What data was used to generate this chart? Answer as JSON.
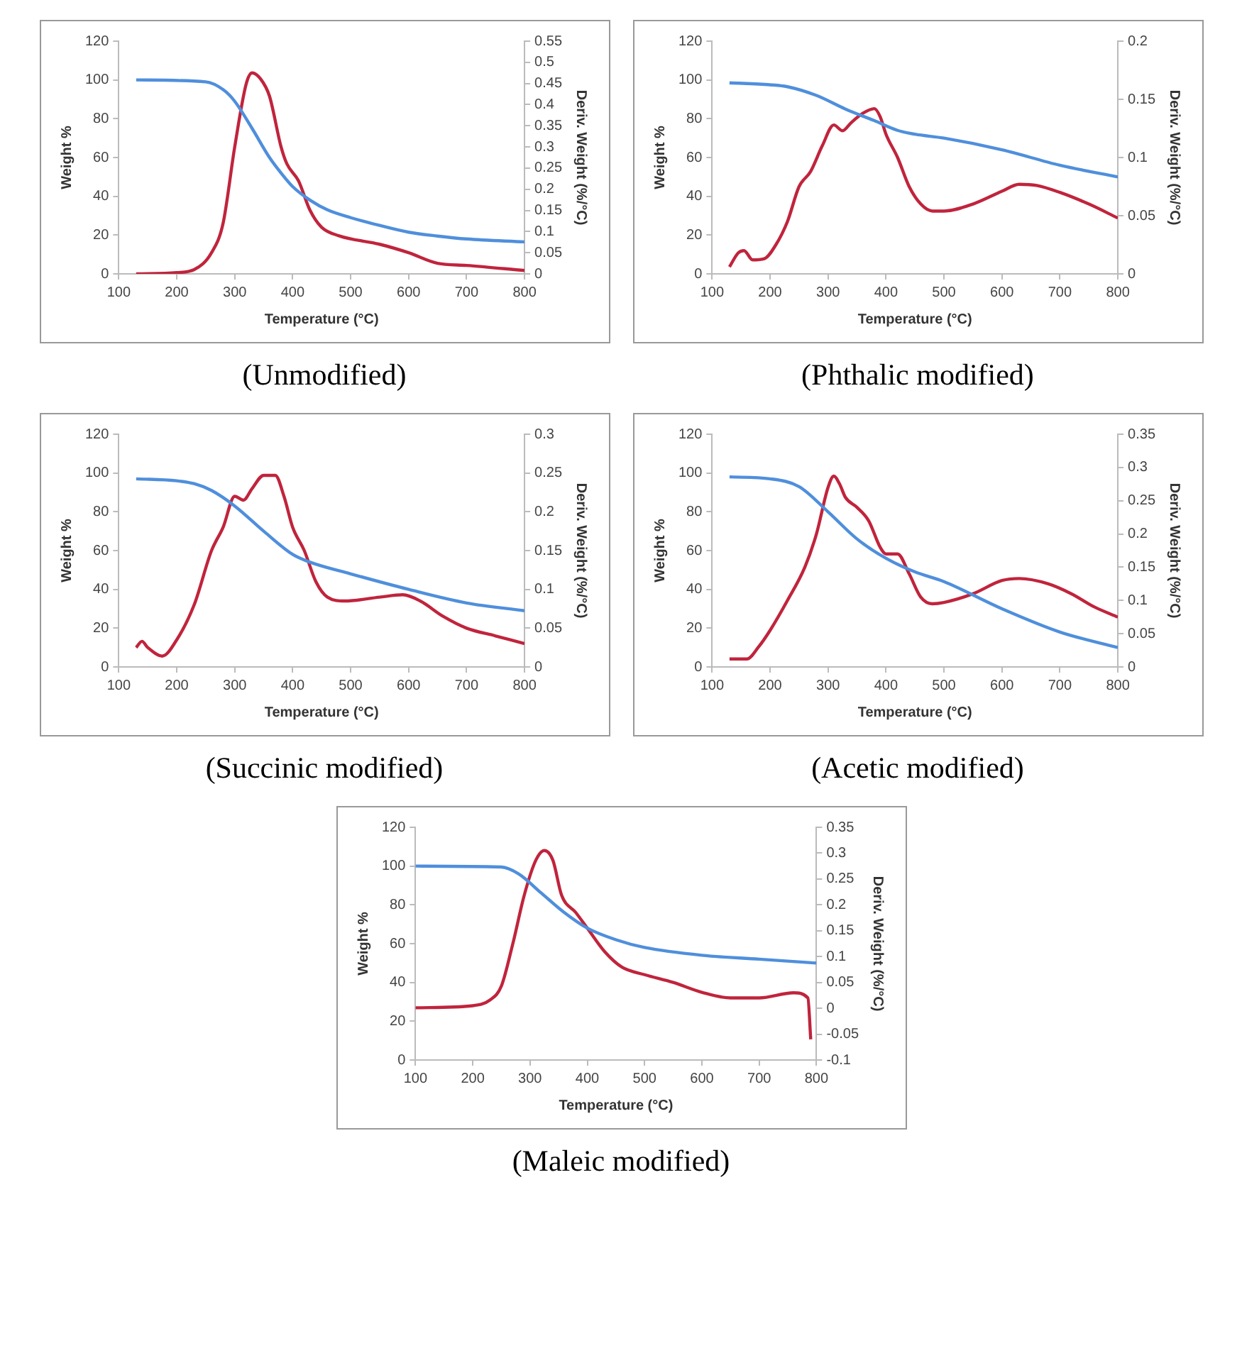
{
  "chart_data": [
    {
      "type": "line",
      "title": "(Unmodified)",
      "xlabel": "Temperature (°C)",
      "ylabel": "Weight %",
      "y2label": "Deriv. Weight (%/°C)",
      "xlim": [
        100,
        800
      ],
      "xticks": [
        100,
        200,
        300,
        400,
        500,
        600,
        700,
        800
      ],
      "ylim": [
        0,
        120
      ],
      "yticks": [
        0,
        20,
        40,
        60,
        80,
        100,
        120
      ],
      "y2lim": [
        0,
        0.55
      ],
      "y2ticks": [
        0,
        0.05,
        0.1,
        0.15,
        0.2,
        0.25,
        0.3,
        0.35,
        0.4,
        0.45,
        0.5,
        0.55
      ],
      "grid": false,
      "legend": false,
      "series": [
        {
          "color": "#4f8fdc",
          "x": [
            130,
            250,
            280,
            300,
            330,
            360,
            380,
            400,
            430,
            460,
            500,
            550,
            600,
            650,
            700,
            800
          ],
          "values": [
            100,
            99,
            95,
            89,
            75,
            60,
            52,
            45,
            38,
            33,
            29,
            25,
            21.5,
            19.5,
            18,
            16.5
          ]
        },
        {
          "color": "#c0243c",
          "axis": "y2",
          "x": [
            130,
            200,
            230,
            260,
            280,
            300,
            320,
            330,
            345,
            360,
            380,
            390,
            410,
            430,
            450,
            480,
            550,
            600,
            650,
            700,
            800
          ],
          "values": [
            0,
            0.003,
            0.01,
            0.05,
            0.12,
            0.3,
            0.45,
            0.475,
            0.46,
            0.42,
            0.3,
            0.26,
            0.22,
            0.15,
            0.11,
            0.09,
            0.07,
            0.05,
            0.025,
            0.02,
            0.008
          ]
        }
      ]
    },
    {
      "type": "line",
      "title": "(Phthalic modified)",
      "xlabel": "Temperature (°C)",
      "ylabel": "Weight %",
      "y2label": "Deriv. Weight (%/°C)",
      "xlim": [
        100,
        800
      ],
      "xticks": [
        100,
        200,
        300,
        400,
        500,
        600,
        700,
        800
      ],
      "ylim": [
        0,
        120
      ],
      "yticks": [
        0,
        20,
        40,
        60,
        80,
        100,
        120
      ],
      "y2lim": [
        0,
        0.2
      ],
      "y2ticks": [
        0,
        0.05,
        0.1,
        0.15,
        0.2
      ],
      "grid": false,
      "legend": false,
      "series": [
        {
          "color": "#4f8fdc",
          "x": [
            130,
            200,
            230,
            280,
            330,
            380,
            420,
            450,
            500,
            600,
            700,
            800
          ],
          "values": [
            98.5,
            97.5,
            96.5,
            92,
            85,
            79,
            74,
            72,
            70,
            64,
            56,
            50
          ]
        },
        {
          "color": "#c0243c",
          "axis": "y2",
          "x": [
            130,
            145,
            155,
            170,
            190,
            210,
            230,
            250,
            270,
            290,
            310,
            325,
            340,
            360,
            380,
            390,
            400,
            420,
            440,
            460,
            480,
            500,
            550,
            600,
            630,
            660,
            700,
            750,
            800
          ],
          "values": [
            0.006,
            0.018,
            0.02,
            0.012,
            0.013,
            0.025,
            0.045,
            0.075,
            0.088,
            0.11,
            0.128,
            0.123,
            0.13,
            0.138,
            0.142,
            0.135,
            0.12,
            0.1,
            0.075,
            0.06,
            0.054,
            0.054,
            0.06,
            0.071,
            0.077,
            0.076,
            0.07,
            0.06,
            0.048
          ]
        }
      ]
    },
    {
      "type": "line",
      "title": "(Succinic modified)",
      "xlabel": "Temperature (°C)",
      "ylabel": "Weight %",
      "y2label": "Deriv. Weight (%/°C)",
      "xlim": [
        100,
        800
      ],
      "xticks": [
        100,
        200,
        300,
        400,
        500,
        600,
        700,
        800
      ],
      "ylim": [
        0,
        120
      ],
      "yticks": [
        0,
        20,
        40,
        60,
        80,
        100,
        120
      ],
      "y2lim": [
        0,
        0.3
      ],
      "y2ticks": [
        0,
        0.05,
        0.1,
        0.15,
        0.2,
        0.25,
        0.3
      ],
      "grid": false,
      "legend": false,
      "series": [
        {
          "color": "#4f8fdc",
          "x": [
            130,
            200,
            230,
            260,
            300,
            350,
            400,
            430,
            500,
            600,
            700,
            800
          ],
          "values": [
            97,
            96,
            94.5,
            91,
            83,
            70,
            58,
            54,
            48,
            40,
            33,
            29
          ]
        },
        {
          "color": "#c0243c",
          "axis": "y2",
          "x": [
            130,
            140,
            150,
            175,
            200,
            230,
            260,
            280,
            300,
            315,
            330,
            350,
            370,
            385,
            400,
            420,
            440,
            460,
            490,
            550,
            590,
            620,
            660,
            700,
            750,
            800
          ],
          "values": [
            0.025,
            0.033,
            0.025,
            0.014,
            0.035,
            0.08,
            0.15,
            0.18,
            0.22,
            0.215,
            0.23,
            0.247,
            0.247,
            0.22,
            0.18,
            0.15,
            0.11,
            0.09,
            0.085,
            0.09,
            0.093,
            0.085,
            0.065,
            0.05,
            0.04,
            0.03
          ]
        }
      ]
    },
    {
      "type": "line",
      "title": "(Acetic modified)",
      "xlabel": "Temperature (°C)",
      "ylabel": "Weight %",
      "y2label": "Deriv. Weight (%/°C)",
      "xlim": [
        100,
        800
      ],
      "xticks": [
        100,
        200,
        300,
        400,
        500,
        600,
        700,
        800
      ],
      "ylim": [
        0,
        120
      ],
      "yticks": [
        0,
        20,
        40,
        60,
        80,
        100,
        120
      ],
      "y2lim": [
        0,
        0.35
      ],
      "y2ticks": [
        0,
        0.05,
        0.1,
        0.15,
        0.2,
        0.25,
        0.3,
        0.35
      ],
      "grid": false,
      "legend": false,
      "series": [
        {
          "color": "#4f8fdc",
          "x": [
            130,
            200,
            250,
            300,
            350,
            400,
            450,
            500,
            600,
            700,
            800
          ],
          "values": [
            98,
            97,
            93,
            80,
            66,
            56,
            49,
            44,
            30,
            18,
            10
          ]
        },
        {
          "color": "#c0243c",
          "axis": "y2",
          "x": [
            130,
            160,
            180,
            200,
            230,
            260,
            280,
            300,
            310,
            320,
            330,
            350,
            370,
            390,
            400,
            420,
            440,
            460,
            480,
            500,
            550,
            600,
            630,
            680,
            720,
            760,
            800
          ],
          "values": [
            0.012,
            0.012,
            0.03,
            0.055,
            0.1,
            0.15,
            0.2,
            0.27,
            0.287,
            0.275,
            0.255,
            0.24,
            0.22,
            0.18,
            0.17,
            0.17,
            0.14,
            0.105,
            0.095,
            0.097,
            0.11,
            0.13,
            0.133,
            0.125,
            0.11,
            0.09,
            0.075
          ]
        }
      ]
    },
    {
      "type": "line",
      "title": "(Maleic modified)",
      "xlabel": "Temperature (°C)",
      "ylabel": "Weight %",
      "y2label": "Deriv. Weight (%/°C)",
      "xlim": [
        100,
        800
      ],
      "xticks": [
        100,
        200,
        300,
        400,
        500,
        600,
        700,
        800
      ],
      "ylim": [
        0,
        120
      ],
      "yticks": [
        0,
        20,
        40,
        60,
        80,
        100,
        120
      ],
      "y2lim": [
        -0.1,
        0.35
      ],
      "y2ticks": [
        -0.1,
        -0.05,
        0,
        0.05,
        0.1,
        0.15,
        0.2,
        0.25,
        0.3,
        0.35
      ],
      "grid": false,
      "legend": false,
      "series": [
        {
          "color": "#4f8fdc",
          "x": [
            100,
            250,
            280,
            320,
            360,
            400,
            450,
            500,
            600,
            700,
            800
          ],
          "values": [
            100,
            99.5,
            96,
            86,
            76,
            68,
            62,
            58,
            54,
            52,
            50
          ]
        },
        {
          "color": "#c0243c",
          "axis": "y2",
          "x": [
            100,
            200,
            230,
            250,
            270,
            290,
            310,
            325,
            340,
            355,
            380,
            400,
            430,
            460,
            500,
            550,
            600,
            650,
            700,
            760,
            785,
            790
          ],
          "values": [
            0.001,
            0.005,
            0.016,
            0.043,
            0.125,
            0.219,
            0.286,
            0.305,
            0.286,
            0.219,
            0.185,
            0.155,
            0.11,
            0.08,
            0.065,
            0.05,
            0.031,
            0.02,
            0.02,
            0.03,
            0.02,
            -0.06
          ]
        }
      ]
    }
  ]
}
